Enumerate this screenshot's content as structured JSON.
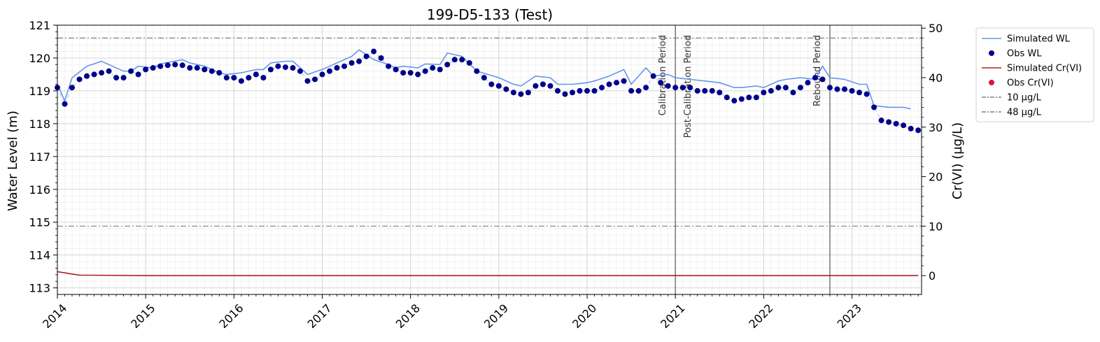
{
  "chart_data": {
    "type": "line",
    "title": "199-D5-133 (Test)",
    "ylabel": "Water Level (m)",
    "y2label": "Cr(VI) (µg/L)",
    "xlim": [
      "2014-01-01",
      "2023-10-15"
    ],
    "ylim": [
      112.8,
      121
    ],
    "y2lim": [
      -3.8,
      50.6
    ],
    "x_tick_labels": [
      "2014",
      "2015",
      "2016",
      "2017",
      "2018",
      "2019",
      "2020",
      "2021",
      "2022",
      "2023"
    ],
    "y_tick_labels": [
      "113",
      "114",
      "115",
      "116",
      "117",
      "118",
      "119",
      "120",
      "121"
    ],
    "y2_tick_labels": [
      "0",
      "10",
      "20",
      "30",
      "40",
      "50"
    ],
    "grid": true,
    "legend_placement": "outside-right",
    "legend": [
      "Simulated WL",
      "Obs WL",
      "Simulated Cr(VI)",
      "Obs Cr(VI)",
      "10 µg/L",
      "48 µg/L"
    ],
    "period_lines": [
      {
        "label": "Calibration Period",
        "date": "2021-01-01"
      },
      {
        "label": "Post-Calibration Period",
        "date": "2021-01-01"
      },
      {
        "label": "Rebound Period",
        "date": "2022-10-01"
      }
    ],
    "series": [
      {
        "name": "Simulated WL",
        "axis": "left",
        "color": "#6495ED",
        "x": [
          "2014-01",
          "2014-02",
          "2014-03",
          "2014-05",
          "2014-07",
          "2014-08",
          "2014-10",
          "2014-11",
          "2014-12",
          "2015-02",
          "2015-03",
          "2015-06",
          "2015-07",
          "2015-09",
          "2015-11",
          "2015-12",
          "2016-02",
          "2016-04",
          "2016-05",
          "2016-06",
          "2016-08",
          "2016-09",
          "2016-11",
          "2017-01",
          "2017-02",
          "2017-03",
          "2017-05",
          "2017-06",
          "2017-08",
          "2017-10",
          "2017-11",
          "2017-12",
          "2018-02",
          "2018-03",
          "2018-05",
          "2018-06",
          "2018-08",
          "2018-10",
          "2019-01",
          "2019-03",
          "2019-04",
          "2019-06",
          "2019-08",
          "2019-09",
          "2019-11",
          "2020-01",
          "2020-02",
          "2020-04",
          "2020-06",
          "2020-07",
          "2020-09",
          "2020-10",
          "2020-12",
          "2021-01",
          "2021-03",
          "2021-05",
          "2021-07",
          "2021-09",
          "2021-10",
          "2021-12",
          "2022-01",
          "2022-03",
          "2022-04",
          "2022-06",
          "2022-08",
          "2022-09",
          "2022-10",
          "2022-12",
          "2023-02",
          "2023-03",
          "2023-04",
          "2023-06",
          "2023-08",
          "2023-09"
        ],
        "values": [
          119.2,
          118.7,
          119.4,
          119.75,
          119.9,
          119.8,
          119.6,
          119.6,
          119.75,
          119.7,
          119.82,
          119.95,
          119.85,
          119.75,
          119.55,
          119.5,
          119.55,
          119.65,
          119.65,
          119.85,
          119.9,
          119.9,
          119.5,
          119.65,
          119.75,
          119.85,
          120.05,
          120.25,
          119.95,
          119.8,
          119.7,
          119.75,
          119.7,
          119.82,
          119.8,
          120.15,
          120.05,
          119.6,
          119.4,
          119.2,
          119.15,
          119.45,
          119.4,
          119.2,
          119.2,
          119.25,
          119.3,
          119.45,
          119.65,
          119.2,
          119.7,
          119.45,
          119.5,
          119.4,
          119.35,
          119.3,
          119.25,
          119.1,
          119.1,
          119.15,
          119.1,
          119.3,
          119.35,
          119.4,
          119.35,
          119.75,
          119.4,
          119.35,
          119.2,
          119.2,
          118.55,
          118.5,
          118.5,
          118.45
        ]
      },
      {
        "name": "Obs WL",
        "axis": "left",
        "color": "#00008B",
        "x": [
          "2014-01",
          "2014-02",
          "2014-03",
          "2014-04",
          "2014-05",
          "2014-06",
          "2014-07",
          "2014-08",
          "2014-09",
          "2014-10",
          "2014-11",
          "2014-12",
          "2015-01",
          "2015-02",
          "2015-03",
          "2015-04",
          "2015-05",
          "2015-06",
          "2015-07",
          "2015-08",
          "2015-09",
          "2015-10",
          "2015-11",
          "2015-12",
          "2016-01",
          "2016-02",
          "2016-03",
          "2016-04",
          "2016-05",
          "2016-06",
          "2016-07",
          "2016-08",
          "2016-09",
          "2016-10",
          "2016-11",
          "2016-12",
          "2017-01",
          "2017-02",
          "2017-03",
          "2017-04",
          "2017-05",
          "2017-06",
          "2017-07",
          "2017-08",
          "2017-09",
          "2017-10",
          "2017-11",
          "2017-12",
          "2018-01",
          "2018-02",
          "2018-03",
          "2018-04",
          "2018-05",
          "2018-06",
          "2018-07",
          "2018-08",
          "2018-09",
          "2018-10",
          "2018-11",
          "2018-12",
          "2019-01",
          "2019-02",
          "2019-03",
          "2019-04",
          "2019-05",
          "2019-06",
          "2019-07",
          "2019-08",
          "2019-09",
          "2019-10",
          "2019-11",
          "2019-12",
          "2020-01",
          "2020-02",
          "2020-03",
          "2020-04",
          "2020-05",
          "2020-06",
          "2020-07",
          "2020-08",
          "2020-09",
          "2020-10",
          "2020-11",
          "2020-12",
          "2021-01",
          "2021-02",
          "2021-03",
          "2021-04",
          "2021-05",
          "2021-06",
          "2021-07",
          "2021-08",
          "2021-09",
          "2021-10",
          "2021-11",
          "2021-12",
          "2022-01",
          "2022-02",
          "2022-03",
          "2022-04",
          "2022-05",
          "2022-06",
          "2022-07",
          "2022-08",
          "2022-09",
          "2022-10",
          "2022-11",
          "2022-12",
          "2023-01",
          "2023-02",
          "2023-03",
          "2023-04",
          "2023-05",
          "2023-06",
          "2023-07",
          "2023-08",
          "2023-09",
          "2023-10"
        ],
        "values": [
          119.1,
          118.6,
          119.1,
          119.35,
          119.45,
          119.5,
          119.55,
          119.6,
          119.4,
          119.4,
          119.6,
          119.5,
          119.65,
          119.7,
          119.75,
          119.78,
          119.8,
          119.78,
          119.7,
          119.7,
          119.65,
          119.6,
          119.55,
          119.4,
          119.4,
          119.3,
          119.4,
          119.5,
          119.4,
          119.65,
          119.75,
          119.72,
          119.7,
          119.6,
          119.3,
          119.35,
          119.5,
          119.6,
          119.7,
          119.75,
          119.85,
          119.9,
          120.05,
          120.2,
          120.0,
          119.75,
          119.65,
          119.55,
          119.55,
          119.5,
          119.6,
          119.7,
          119.65,
          119.8,
          119.95,
          119.95,
          119.85,
          119.6,
          119.4,
          119.2,
          119.15,
          119.05,
          118.95,
          118.9,
          118.95,
          119.15,
          119.2,
          119.15,
          119.0,
          118.9,
          118.95,
          119.0,
          119.0,
          119.0,
          119.1,
          119.2,
          119.25,
          119.3,
          119.0,
          119.0,
          119.1,
          119.45,
          119.25,
          119.15,
          119.1,
          119.1,
          119.1,
          119.0,
          119.0,
          119.0,
          118.95,
          118.8,
          118.7,
          118.75,
          118.8,
          118.8,
          118.95,
          119.0,
          119.1,
          119.1,
          118.95,
          119.1,
          119.25,
          119.4,
          119.35,
          119.1,
          119.05,
          119.05,
          119.0,
          118.95,
          118.9,
          118.5,
          118.1,
          118.05,
          118.0,
          117.95,
          117.85,
          117.8
        ]
      },
      {
        "name": "Simulated Cr(VI)",
        "axis": "right",
        "color": "#B22222",
        "x": [
          "2014-01",
          "2014-04",
          "2015-01",
          "2016-01",
          "2017-01",
          "2018-01",
          "2019-01",
          "2020-01",
          "2021-01",
          "2022-01",
          "2023-01",
          "2023-10"
        ],
        "values": [
          0.8,
          0.1,
          0,
          0,
          0,
          0,
          0,
          0,
          0,
          0,
          0,
          0
        ]
      },
      {
        "name": "Obs Cr(VI)",
        "axis": "right",
        "color": "#DC143C",
        "x": [],
        "values": []
      }
    ],
    "reference_lines": [
      {
        "name": "10 µg/L",
        "axis": "right",
        "value": 10,
        "color": "#808080"
      },
      {
        "name": "48 µg/L",
        "axis": "right",
        "value": 48,
        "color": "#808080"
      }
    ]
  }
}
